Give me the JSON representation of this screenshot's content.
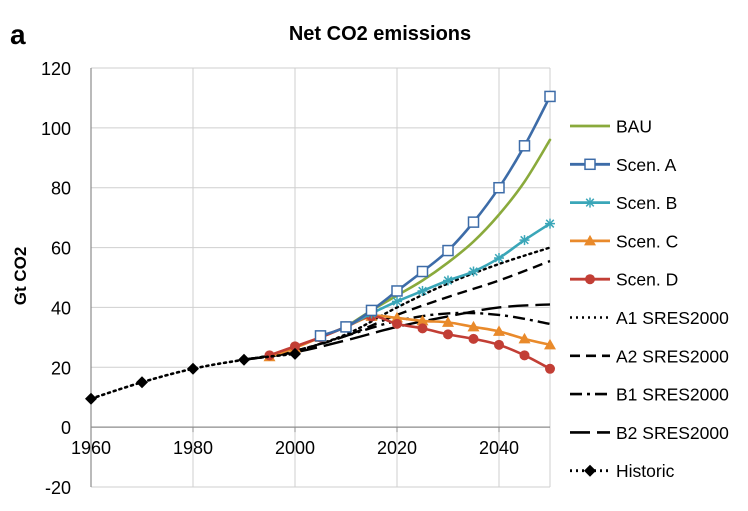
{
  "chart_data": {
    "type": "line",
    "panel_label": "a",
    "title": "Net CO2 emissions",
    "xlabel": "",
    "ylabel": "Gt CO2",
    "xlim": [
      1960,
      2050
    ],
    "ylim": [
      -20,
      120
    ],
    "xticks": [
      1960,
      1980,
      2000,
      2020,
      2040
    ],
    "yticks": [
      -20,
      0,
      20,
      40,
      60,
      80,
      100,
      120
    ],
    "grid": true,
    "legend_position": "right",
    "series": [
      {
        "name": "BAU",
        "color": "#8aaa3c",
        "style": "solid",
        "marker": "none",
        "x": [
          2010,
          2015,
          2020,
          2025,
          2030,
          2035,
          2040,
          2045,
          2050
        ],
        "y": [
          33.5,
          39,
          44,
          49,
          55,
          62,
          71,
          82,
          96
        ]
      },
      {
        "name": "Scen. A",
        "color": "#3d6ca8",
        "style": "solid",
        "marker": "square-open",
        "x": [
          2005,
          2010,
          2015,
          2020,
          2025,
          2030,
          2035,
          2040,
          2045,
          2050
        ],
        "y": [
          30.5,
          33.5,
          39,
          45.5,
          52,
          59,
          68.5,
          80,
          94,
          110.5
        ]
      },
      {
        "name": "Scen. B",
        "color": "#3aa6b8",
        "style": "solid",
        "marker": "star",
        "x": [
          2010,
          2015,
          2020,
          2025,
          2030,
          2035,
          2040,
          2045,
          2050
        ],
        "y": [
          33.5,
          38,
          42,
          45.5,
          49,
          52,
          56.5,
          62.5,
          68
        ]
      },
      {
        "name": "Scen. C",
        "color": "#e98a2b",
        "style": "solid",
        "marker": "triangle",
        "x": [
          1995,
          2000,
          2005,
          2010,
          2015,
          2020,
          2025,
          2030,
          2035,
          2040,
          2045,
          2050
        ],
        "y": [
          23.5,
          26.5,
          30,
          33.5,
          37,
          36.5,
          35.5,
          35,
          33.5,
          32,
          29.5,
          27.5
        ]
      },
      {
        "name": "Scen. D",
        "color": "#c23e35",
        "style": "solid",
        "marker": "circle",
        "x": [
          1995,
          2000,
          2005,
          2010,
          2015,
          2020,
          2025,
          2030,
          2035,
          2040,
          2045,
          2050
        ],
        "y": [
          24,
          27,
          30,
          33.5,
          37,
          34.5,
          33,
          31,
          29.5,
          27.5,
          24,
          19.5
        ]
      },
      {
        "name": "A1 SRES2000",
        "color": "#000000",
        "style": "dotted",
        "marker": "none",
        "x": [
          1990,
          2000,
          2010,
          2020,
          2030,
          2040,
          2050
        ],
        "y": [
          22.5,
          25.5,
          31,
          40,
          48,
          54.5,
          60
        ]
      },
      {
        "name": "A2 SRES2000",
        "color": "#000000",
        "style": "dashed",
        "marker": "none",
        "x": [
          1990,
          2000,
          2010,
          2020,
          2030,
          2040,
          2050
        ],
        "y": [
          22.5,
          25.5,
          30.5,
          37.5,
          43.5,
          49,
          55.5
        ]
      },
      {
        "name": "B1 SRES2000",
        "color": "#000000",
        "style": "dashdot",
        "marker": "none",
        "x": [
          1990,
          2000,
          2010,
          2020,
          2030,
          2040,
          2050
        ],
        "y": [
          22.5,
          25.5,
          30.5,
          35.5,
          38,
          37.5,
          34.5
        ]
      },
      {
        "name": "B2 SRES2000",
        "color": "#000000",
        "style": "longdash",
        "marker": "none",
        "x": [
          1990,
          2000,
          2010,
          2020,
          2030,
          2040,
          2050
        ],
        "y": [
          22.5,
          25,
          29,
          33.5,
          37,
          40,
          41
        ]
      },
      {
        "name": "Historic",
        "color": "#000000",
        "style": "dotted",
        "marker": "diamond",
        "x": [
          1960,
          1970,
          1980,
          1990,
          2000
        ],
        "y": [
          9.5,
          15,
          19.5,
          22.5,
          24.5
        ]
      }
    ]
  }
}
